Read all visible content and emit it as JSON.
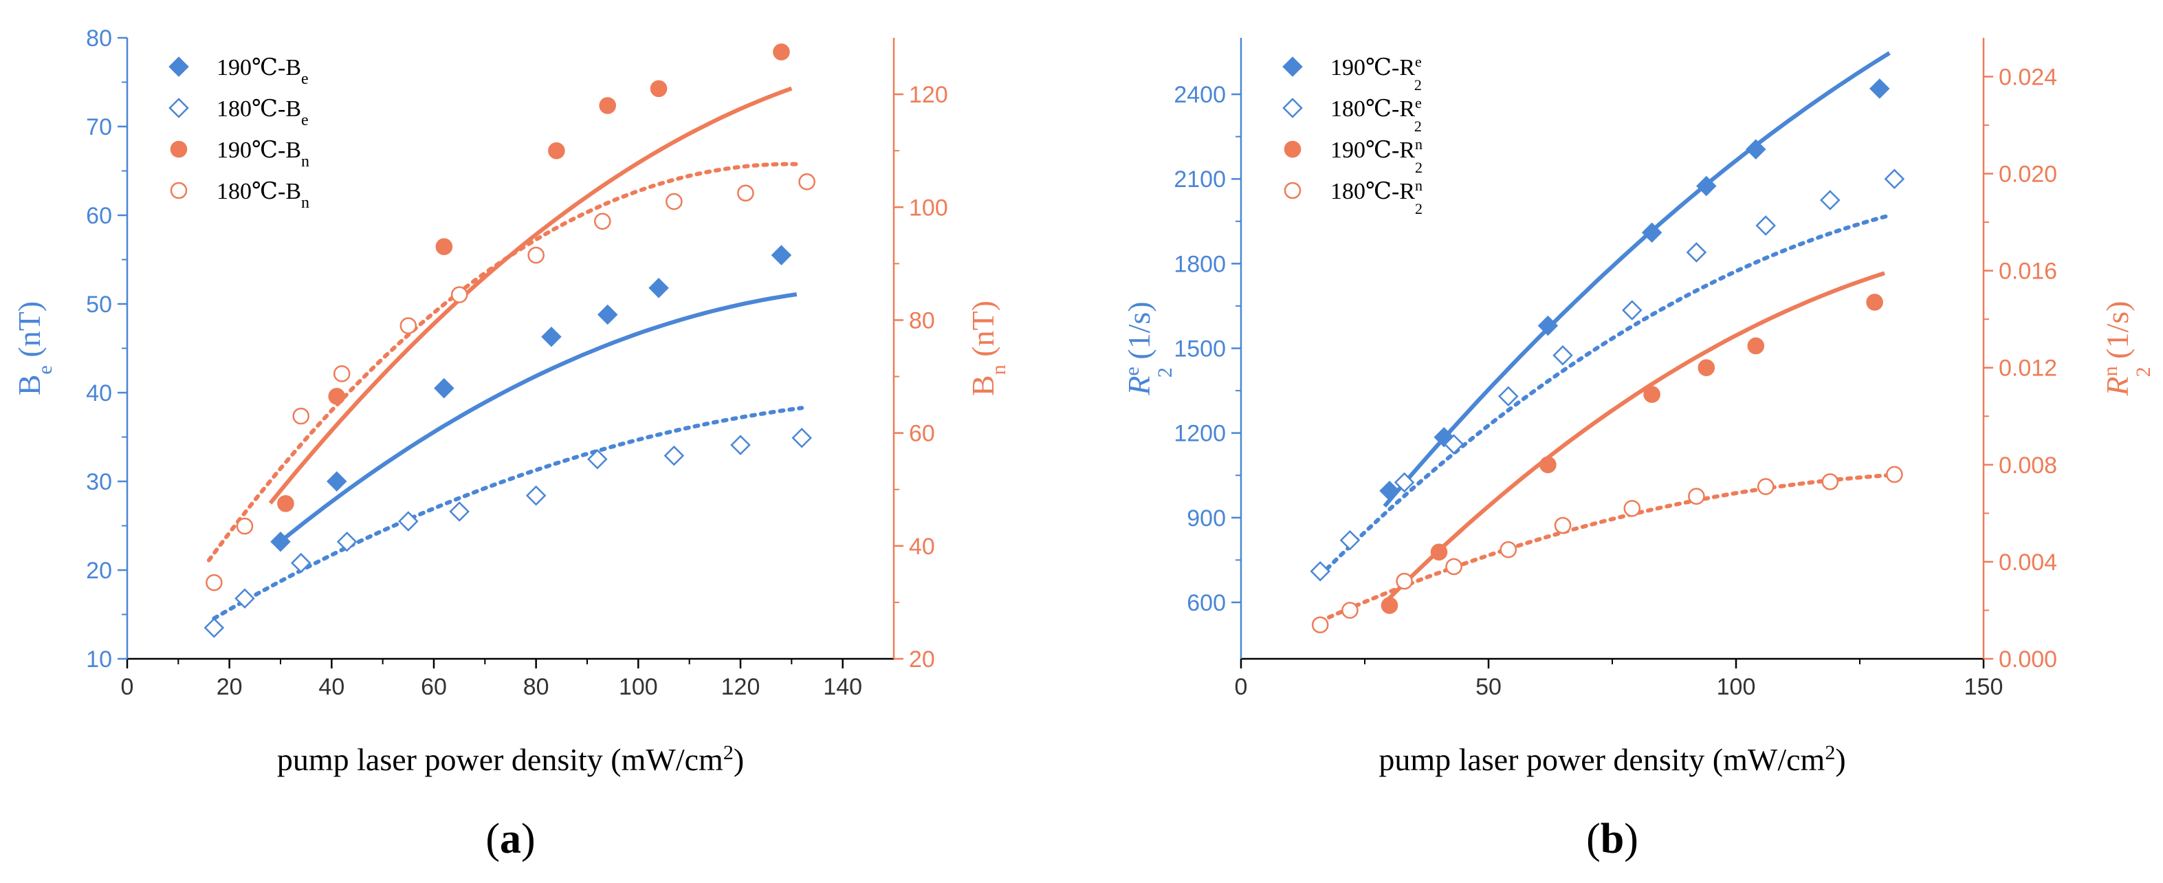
{
  "colors": {
    "blue": "#4a86d6",
    "orange": "#ee7c58",
    "axis": "#000000"
  },
  "chart_data": [
    {
      "type": "scatter",
      "panel_label_open": "(",
      "panel_label_letter": "a",
      "panel_label_close": ")",
      "xlabel": "pump laser power density (mW/cm",
      "xlabel_sup": "2",
      "xlabel_end": ")",
      "ylabel_left_main": "B",
      "ylabel_left_sub": "e",
      "ylabel_left_unit": " (nT)",
      "ylabel_right_main": "B",
      "ylabel_right_sub": "n",
      "ylabel_right_unit": " (nT)",
      "xlim": [
        0,
        150
      ],
      "xticks": [
        0,
        20,
        40,
        60,
        80,
        100,
        120,
        140
      ],
      "xtick_labels": [
        "0",
        "20",
        "40",
        "60",
        "80",
        "100",
        "120",
        "140"
      ],
      "ylim_left": [
        10,
        80
      ],
      "yticks_left": [
        10,
        20,
        30,
        40,
        50,
        60,
        70,
        80
      ],
      "ytick_labels_left": [
        "10",
        "20",
        "30",
        "40",
        "50",
        "60",
        "70",
        "80"
      ],
      "ylim_right": [
        20,
        130
      ],
      "yticks_right": [
        20,
        40,
        60,
        80,
        100,
        120
      ],
      "ytick_labels_right": [
        "20",
        "40",
        "60",
        "80",
        "100",
        "120"
      ],
      "series": [
        {
          "label_main": "190℃-B",
          "label_sub": "e",
          "marker": "diamond",
          "filled": true,
          "color": "blue",
          "axis": "left",
          "fit": "solid",
          "x": [
            30,
            41,
            62,
            83,
            94,
            104,
            128
          ],
          "y": [
            23.2,
            30.0,
            40.5,
            46.3,
            48.8,
            51.8,
            55.5
          ],
          "fit_x": [
            30,
            131
          ],
          "fit_coef": [
            -0.001905,
            0.5826,
            7.46
          ]
        },
        {
          "label_main": "180℃-B",
          "label_sub": "e",
          "marker": "diamond",
          "filled": false,
          "color": "blue",
          "axis": "left",
          "fit": "dotted",
          "x": [
            17,
            23,
            34,
            43,
            55,
            65,
            80,
            92,
            107,
            120,
            132
          ],
          "y": [
            13.5,
            16.8,
            20.8,
            23.2,
            25.5,
            26.6,
            28.4,
            32.5,
            32.9,
            34.1,
            34.9
          ],
          "fit_x": [
            17,
            132
          ],
          "fit_coef": [
            -0.001137,
            0.3757,
            8.5
          ]
        },
        {
          "label_main": "190℃-B",
          "label_sub": "n",
          "marker": "circle",
          "filled": true,
          "color": "orange",
          "axis": "right",
          "fit": "solid",
          "x": [
            31,
            41,
            62,
            84,
            94,
            104,
            128
          ],
          "y": [
            47.5,
            66.5,
            93.0,
            110.0,
            118.0,
            121.0,
            127.5
          ],
          "fit_x": [
            28,
            130
          ],
          "fit_coef": [
            -0.0039,
            1.3365,
            13.2
          ]
        },
        {
          "label_main": "180℃-B",
          "label_sub": "n",
          "marker": "circle",
          "filled": false,
          "color": "orange",
          "axis": "right",
          "fit": "dotted",
          "x": [
            17,
            23,
            34,
            42,
            55,
            65,
            80,
            93,
            107,
            121,
            133
          ],
          "y": [
            33.5,
            43.5,
            63.0,
            70.5,
            79.0,
            84.5,
            91.5,
            97.5,
            101.0,
            102.5,
            104.5
          ],
          "fit_x": [
            16,
            132
          ],
          "fit_coef": [
            -0.00544,
            1.4098,
            16.3
          ]
        }
      ]
    },
    {
      "type": "scatter",
      "panel_label_open": "(",
      "panel_label_letter": "b",
      "panel_label_close": ")",
      "xlabel": "pump laser power density (mW/cm",
      "xlabel_sup": "2",
      "xlabel_end": ")",
      "ylabel_left_main": "R",
      "ylabel_left_sub": "2",
      "ylabel_left_sup": "e",
      "ylabel_left_unit": " (1/s)",
      "ylabel_right_main": "R",
      "ylabel_right_sub": "2",
      "ylabel_right_sup": "n",
      "ylabel_right_unit": " (1/s)",
      "xlim": [
        0,
        150
      ],
      "xticks": [
        0,
        50,
        100,
        150
      ],
      "xtick_labels": [
        "0",
        "50",
        "100",
        "150"
      ],
      "ylim_left": [
        400,
        2600
      ],
      "yticks_left": [
        600,
        900,
        1200,
        1500,
        1800,
        2100,
        2400
      ],
      "ytick_labels_left": [
        "600",
        "900",
        "1200",
        "1500",
        "1800",
        "2100",
        "2400"
      ],
      "ylim_right": [
        0,
        0.0256
      ],
      "yticks_right": [
        0,
        0.004,
        0.008,
        0.012,
        0.016,
        0.02,
        0.024
      ],
      "ytick_labels_right": [
        "0.000",
        "0.004",
        "0.008",
        "0.012",
        "0.016",
        "0.020",
        "0.024"
      ],
      "series": [
        {
          "label_main": "190℃-R",
          "label_sub": "2",
          "label_sup": "e",
          "marker": "diamond",
          "filled": true,
          "color": "blue",
          "axis": "left",
          "fit": "solid",
          "x": [
            30,
            41,
            62,
            83,
            94,
            104,
            129
          ],
          "y": [
            995,
            1185,
            1580,
            1910,
            2075,
            2205,
            2420
          ],
          "fit_x": [
            29,
            131
          ],
          "fit_coef": [
            -0.0485,
            23.5,
            300
          ]
        },
        {
          "label_main": "180℃-R",
          "label_sub": "2",
          "label_sup": "e",
          "marker": "diamond",
          "filled": false,
          "color": "blue",
          "axis": "left",
          "fit": "dotted",
          "x": [
            16,
            22,
            33,
            43,
            54,
            65,
            79,
            92,
            106,
            119,
            132
          ],
          "y": [
            710,
            820,
            1025,
            1160,
            1330,
            1475,
            1635,
            1840,
            1935,
            2025,
            2100
          ],
          "fit_x": [
            16,
            131
          ],
          "fit_coef": [
            -0.0561,
            19.34,
            400
          ]
        },
        {
          "label_main": "190℃-R",
          "label_sub": "2",
          "label_sup": "n",
          "marker": "circle",
          "filled": true,
          "color": "orange",
          "axis": "right",
          "fit": "solid",
          "x": [
            30,
            40,
            62,
            83,
            94,
            104,
            128
          ],
          "y": [
            0.0022,
            0.0044,
            0.008,
            0.0109,
            0.012,
            0.0129,
            0.0147
          ],
          "fit_x": [
            29,
            130
          ],
          "fit_coef": [
            -6.9e-07,
            0.0002443,
            -0.0042
          ]
        },
        {
          "label_main": "180℃-R",
          "label_sub": "2",
          "label_sup": "n",
          "marker": "circle",
          "filled": false,
          "color": "orange",
          "axis": "right",
          "fit": "dotted",
          "x": [
            16,
            22,
            33,
            43,
            54,
            65,
            79,
            92,
            106,
            119,
            132
          ],
          "y": [
            0.0014,
            0.002,
            0.0032,
            0.0038,
            0.0045,
            0.0055,
            0.0062,
            0.0067,
            0.0071,
            0.0073,
            0.0076
          ],
          "fit_x": [
            16,
            132
          ],
          "fit_coef": [
            -3.4e-07,
            0.0001023,
            0.0
          ]
        }
      ]
    }
  ]
}
